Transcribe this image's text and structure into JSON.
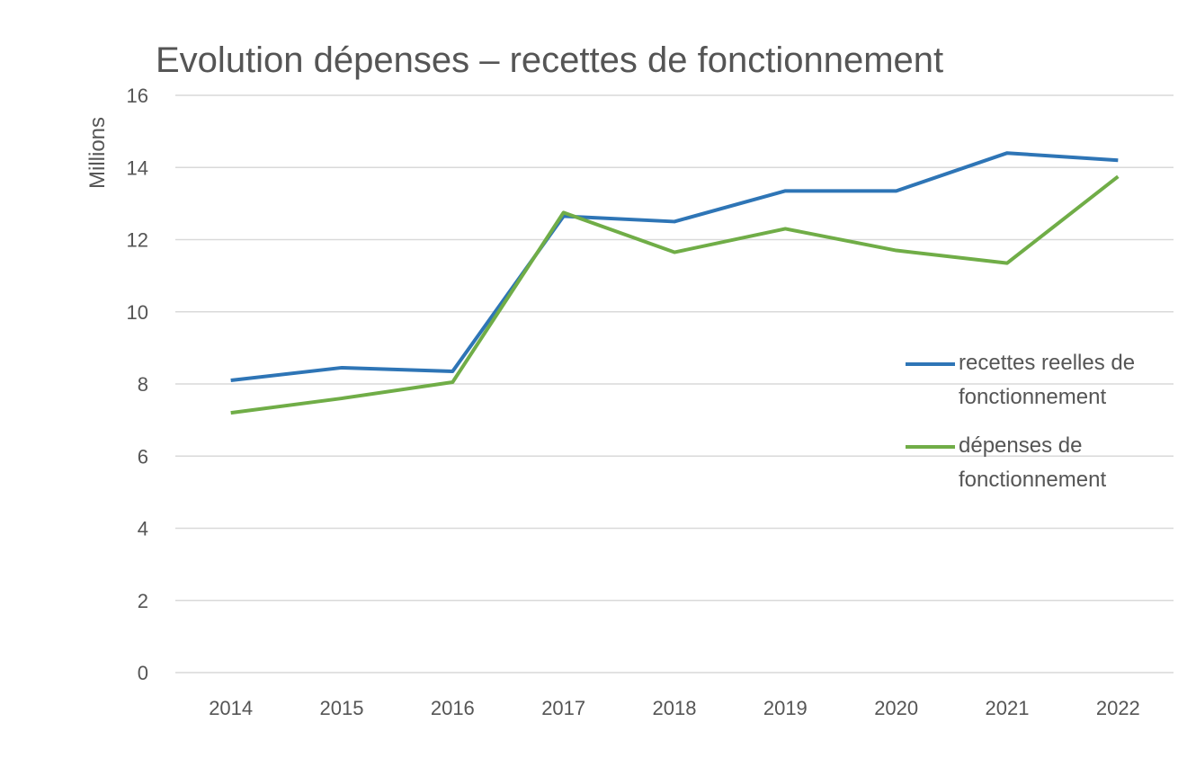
{
  "chart_data": {
    "type": "line",
    "title": "Evolution dépenses – recettes de fonctionnement",
    "y_label": "Millions",
    "categories": [
      "2014",
      "2015",
      "2016",
      "2017",
      "2018",
      "2019",
      "2020",
      "2021",
      "2022"
    ],
    "series": [
      {
        "name": "recettes reelles de fonctionnement",
        "color": "#2e75b6",
        "values": [
          8.1,
          8.45,
          8.35,
          12.65,
          12.5,
          13.35,
          13.35,
          14.4,
          14.2
        ]
      },
      {
        "name": "dépenses de fonctionnement",
        "color": "#70ad47",
        "values": [
          7.2,
          7.6,
          8.05,
          12.75,
          11.65,
          12.3,
          11.7,
          11.35,
          13.75
        ]
      }
    ],
    "ylim": [
      0,
      16
    ],
    "yticks": [
      0,
      2,
      4,
      6,
      8,
      10,
      12,
      14,
      16
    ],
    "grid": true,
    "legend": "right"
  }
}
